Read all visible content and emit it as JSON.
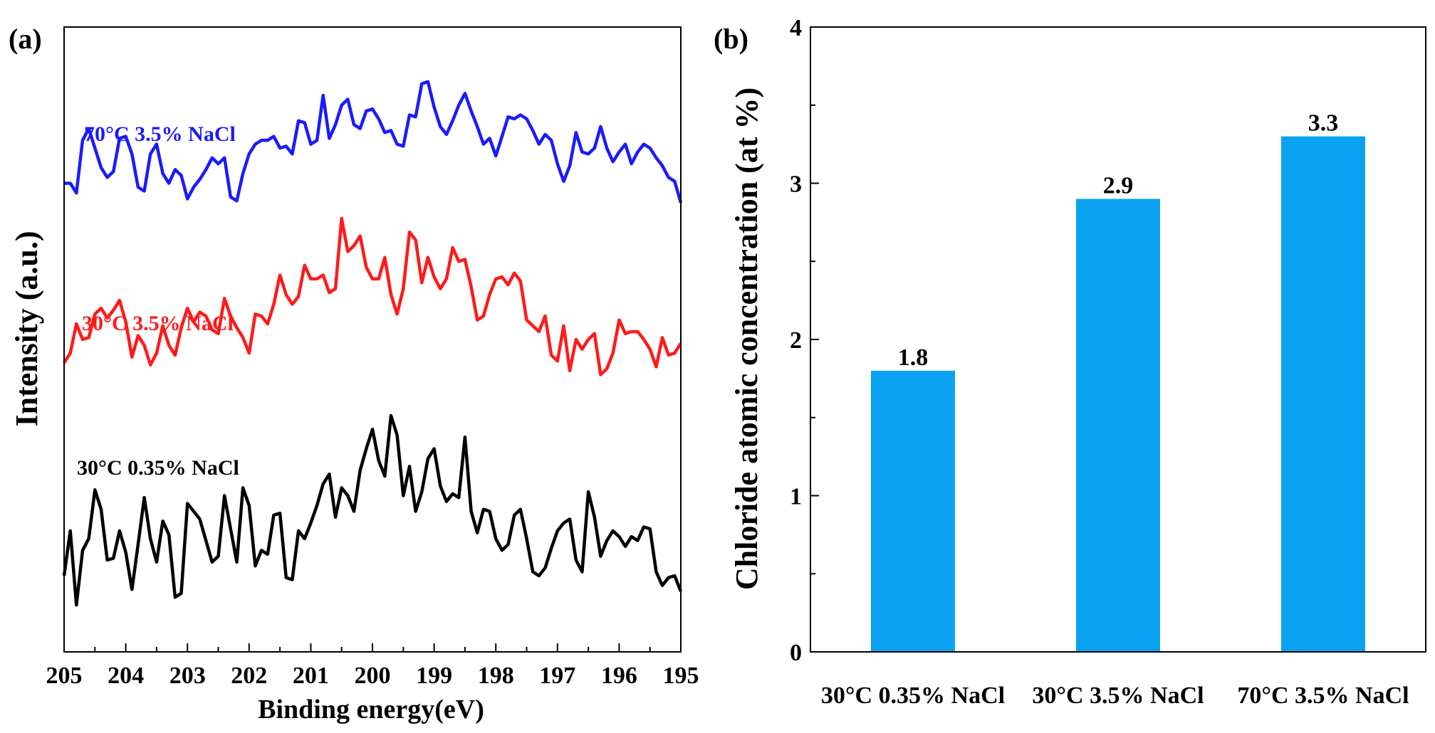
{
  "chart_data": [
    {
      "panel": "(a)",
      "type": "line",
      "xlabel": "Binding energy(eV)",
      "ylabel": "Intensity (a.u.)",
      "xlim": [
        205,
        195
      ],
      "xticks": [
        205,
        204,
        203,
        202,
        201,
        200,
        199,
        198,
        197,
        196,
        195
      ],
      "yticks": [],
      "series": [
        {
          "name": "70°C 3.5% NaCl",
          "color": "#1a1aff",
          "x": [
            205.0,
            204.9,
            204.8,
            204.7,
            204.6,
            204.5,
            204.4,
            204.3,
            204.2,
            204.1,
            204.0,
            203.9,
            203.8,
            203.7,
            203.6,
            203.5,
            203.4,
            203.3,
            203.2,
            203.1,
            203.0,
            202.9,
            202.8,
            202.7,
            202.6,
            202.5,
            202.4,
            202.3,
            202.2,
            202.1,
            202.0,
            201.9,
            201.8,
            201.7,
            201.6,
            201.5,
            201.4,
            201.3,
            201.2,
            201.1,
            201.0,
            200.9,
            200.8,
            200.7,
            200.6,
            200.5,
            200.4,
            200.3,
            200.2,
            200.1,
            200.0,
            199.9,
            199.8,
            199.7,
            199.6,
            199.5,
            199.4,
            199.3,
            199.2,
            199.1,
            199.0,
            198.9,
            198.8,
            198.7,
            198.6,
            198.5,
            198.4,
            198.3,
            198.2,
            198.1,
            198.0,
            197.9,
            197.8,
            197.7,
            197.6,
            197.5,
            197.4,
            197.3,
            197.2,
            197.1,
            197.0,
            196.9,
            196.8,
            196.7,
            196.6,
            196.5,
            196.4,
            196.3,
            196.2,
            196.1,
            196.0,
            195.9,
            195.8,
            195.7,
            195.6,
            195.5,
            195.4,
            195.3,
            195.2,
            195.1,
            195.0
          ],
          "y": [
            2.4,
            2.4,
            2.35,
            2.62,
            2.68,
            2.58,
            2.48,
            2.43,
            2.46,
            2.63,
            2.64,
            2.55,
            2.38,
            2.36,
            2.55,
            2.6,
            2.45,
            2.4,
            2.47,
            2.44,
            2.32,
            2.38,
            2.42,
            2.47,
            2.53,
            2.5,
            2.53,
            2.33,
            2.31,
            2.45,
            2.55,
            2.6,
            2.62,
            2.62,
            2.64,
            2.58,
            2.59,
            2.55,
            2.72,
            2.71,
            2.6,
            2.62,
            2.85,
            2.63,
            2.7,
            2.8,
            2.83,
            2.7,
            2.68,
            2.77,
            2.78,
            2.73,
            2.66,
            2.67,
            2.6,
            2.59,
            2.75,
            2.74,
            2.91,
            2.92,
            2.79,
            2.69,
            2.65,
            2.72,
            2.8,
            2.86,
            2.77,
            2.69,
            2.6,
            2.63,
            2.54,
            2.64,
            2.74,
            2.73,
            2.75,
            2.73,
            2.67,
            2.6,
            2.65,
            2.62,
            2.5,
            2.41,
            2.49,
            2.66,
            2.56,
            2.55,
            2.58,
            2.69,
            2.58,
            2.51,
            2.56,
            2.6,
            2.5,
            2.56,
            2.6,
            2.58,
            2.53,
            2.49,
            2.43,
            2.41,
            2.3
          ]
        },
        {
          "name": "30°C 3.5% NaCl",
          "color": "#ff1a1a",
          "x": [
            205.0,
            204.9,
            204.8,
            204.7,
            204.6,
            204.5,
            204.4,
            204.3,
            204.2,
            204.1,
            204.0,
            203.9,
            203.8,
            203.7,
            203.6,
            203.5,
            203.4,
            203.3,
            203.2,
            203.1,
            203.0,
            202.9,
            202.8,
            202.7,
            202.6,
            202.5,
            202.4,
            202.3,
            202.2,
            202.1,
            202.0,
            201.9,
            201.8,
            201.7,
            201.6,
            201.5,
            201.4,
            201.3,
            201.2,
            201.1,
            201.0,
            200.9,
            200.8,
            200.7,
            200.6,
            200.5,
            200.4,
            200.3,
            200.2,
            200.1,
            200.0,
            199.9,
            199.8,
            199.7,
            199.6,
            199.5,
            199.4,
            199.3,
            199.2,
            199.1,
            199.0,
            198.9,
            198.8,
            198.7,
            198.6,
            198.5,
            198.4,
            198.3,
            198.2,
            198.1,
            198.0,
            197.9,
            197.8,
            197.7,
            197.6,
            197.5,
            197.4,
            197.3,
            197.2,
            197.1,
            197.0,
            196.9,
            196.8,
            196.7,
            196.6,
            196.5,
            196.4,
            196.3,
            196.2,
            196.1,
            196.0,
            195.9,
            195.8,
            195.7,
            195.6,
            195.5,
            195.4,
            195.3,
            195.2,
            195.1,
            195.0
          ],
          "y": [
            1.48,
            1.53,
            1.68,
            1.6,
            1.61,
            1.73,
            1.76,
            1.71,
            1.75,
            1.8,
            1.69,
            1.51,
            1.62,
            1.57,
            1.47,
            1.53,
            1.67,
            1.57,
            1.52,
            1.66,
            1.76,
            1.69,
            1.74,
            1.72,
            1.65,
            1.63,
            1.81,
            1.72,
            1.66,
            1.61,
            1.53,
            1.73,
            1.72,
            1.68,
            1.78,
            1.93,
            1.83,
            1.78,
            1.82,
            1.98,
            1.91,
            1.91,
            1.93,
            1.84,
            1.86,
            2.22,
            2.05,
            2.08,
            2.13,
            1.97,
            1.91,
            1.91,
            2.02,
            1.83,
            1.73,
            1.86,
            2.15,
            2.11,
            1.89,
            2.02,
            1.92,
            1.86,
            1.91,
            2.07,
            2.0,
            2.01,
            1.87,
            1.7,
            1.72,
            1.83,
            1.91,
            1.92,
            1.88,
            1.94,
            1.9,
            1.7,
            1.67,
            1.64,
            1.72,
            1.52,
            1.49,
            1.67,
            1.44,
            1.6,
            1.55,
            1.6,
            1.63,
            1.42,
            1.45,
            1.53,
            1.7,
            1.63,
            1.64,
            1.64,
            1.6,
            1.55,
            1.46,
            1.61,
            1.52,
            1.53,
            1.58
          ]
        },
        {
          "name": "30°C 0.35% NaCl",
          "color": "#000000",
          "x": [
            205.0,
            204.9,
            204.8,
            204.7,
            204.6,
            204.5,
            204.4,
            204.3,
            204.2,
            204.1,
            204.0,
            203.9,
            203.8,
            203.7,
            203.6,
            203.5,
            203.4,
            203.3,
            203.2,
            203.1,
            203.0,
            202.9,
            202.8,
            202.7,
            202.6,
            202.5,
            202.4,
            202.3,
            202.2,
            202.1,
            202.0,
            201.9,
            201.8,
            201.7,
            201.6,
            201.5,
            201.4,
            201.3,
            201.2,
            201.1,
            201.0,
            200.9,
            200.8,
            200.7,
            200.6,
            200.5,
            200.4,
            200.3,
            200.2,
            200.1,
            200.0,
            199.9,
            199.8,
            199.7,
            199.6,
            199.5,
            199.4,
            199.3,
            199.2,
            199.1,
            199.0,
            198.9,
            198.8,
            198.7,
            198.6,
            198.5,
            198.4,
            198.3,
            198.2,
            198.1,
            198.0,
            197.9,
            197.8,
            197.7,
            197.6,
            197.5,
            197.4,
            197.3,
            197.2,
            197.1,
            197.0,
            196.9,
            196.8,
            196.7,
            196.6,
            196.5,
            196.4,
            196.3,
            196.2,
            196.1,
            196.0,
            195.9,
            195.8,
            195.7,
            195.6,
            195.5,
            195.4,
            195.3,
            195.2,
            195.1,
            195.0
          ],
          "y": [
            0.39,
            0.62,
            0.24,
            0.52,
            0.58,
            0.83,
            0.73,
            0.47,
            0.48,
            0.62,
            0.51,
            0.32,
            0.55,
            0.79,
            0.58,
            0.46,
            0.67,
            0.6,
            0.28,
            0.3,
            0.76,
            0.72,
            0.68,
            0.57,
            0.46,
            0.49,
            0.8,
            0.63,
            0.46,
            0.84,
            0.75,
            0.44,
            0.52,
            0.5,
            0.7,
            0.71,
            0.38,
            0.37,
            0.62,
            0.58,
            0.66,
            0.75,
            0.86,
            0.91,
            0.69,
            0.84,
            0.8,
            0.72,
            0.93,
            1.04,
            1.14,
            0.98,
            0.9,
            1.21,
            1.11,
            0.8,
            0.95,
            0.72,
            0.82,
            0.99,
            1.04,
            0.85,
            0.77,
            0.81,
            0.79,
            1.1,
            0.72,
            0.61,
            0.73,
            0.72,
            0.58,
            0.52,
            0.55,
            0.7,
            0.73,
            0.58,
            0.41,
            0.39,
            0.43,
            0.53,
            0.62,
            0.66,
            0.68,
            0.47,
            0.41,
            0.82,
            0.69,
            0.49,
            0.57,
            0.62,
            0.59,
            0.54,
            0.59,
            0.57,
            0.64,
            0.63,
            0.41,
            0.34,
            0.38,
            0.39,
            0.31
          ]
        }
      ]
    },
    {
      "panel": "(b)",
      "type": "bar",
      "categories": [
        "30°C 0.35% NaCl",
        "30°C 3.5% NaCl",
        "70°C 3.5% NaCl"
      ],
      "values": [
        1.8,
        2.9,
        3.3
      ],
      "value_labels": [
        "1.8",
        "2.9",
        "3.3"
      ],
      "xlabel": "",
      "ylabel": "Chloride atomic concentration (at %)",
      "ylim": [
        0,
        4
      ],
      "yticks": [
        0,
        1,
        2,
        3,
        4
      ],
      "bar_color": "#0aa2f0",
      "grid": false
    }
  ]
}
